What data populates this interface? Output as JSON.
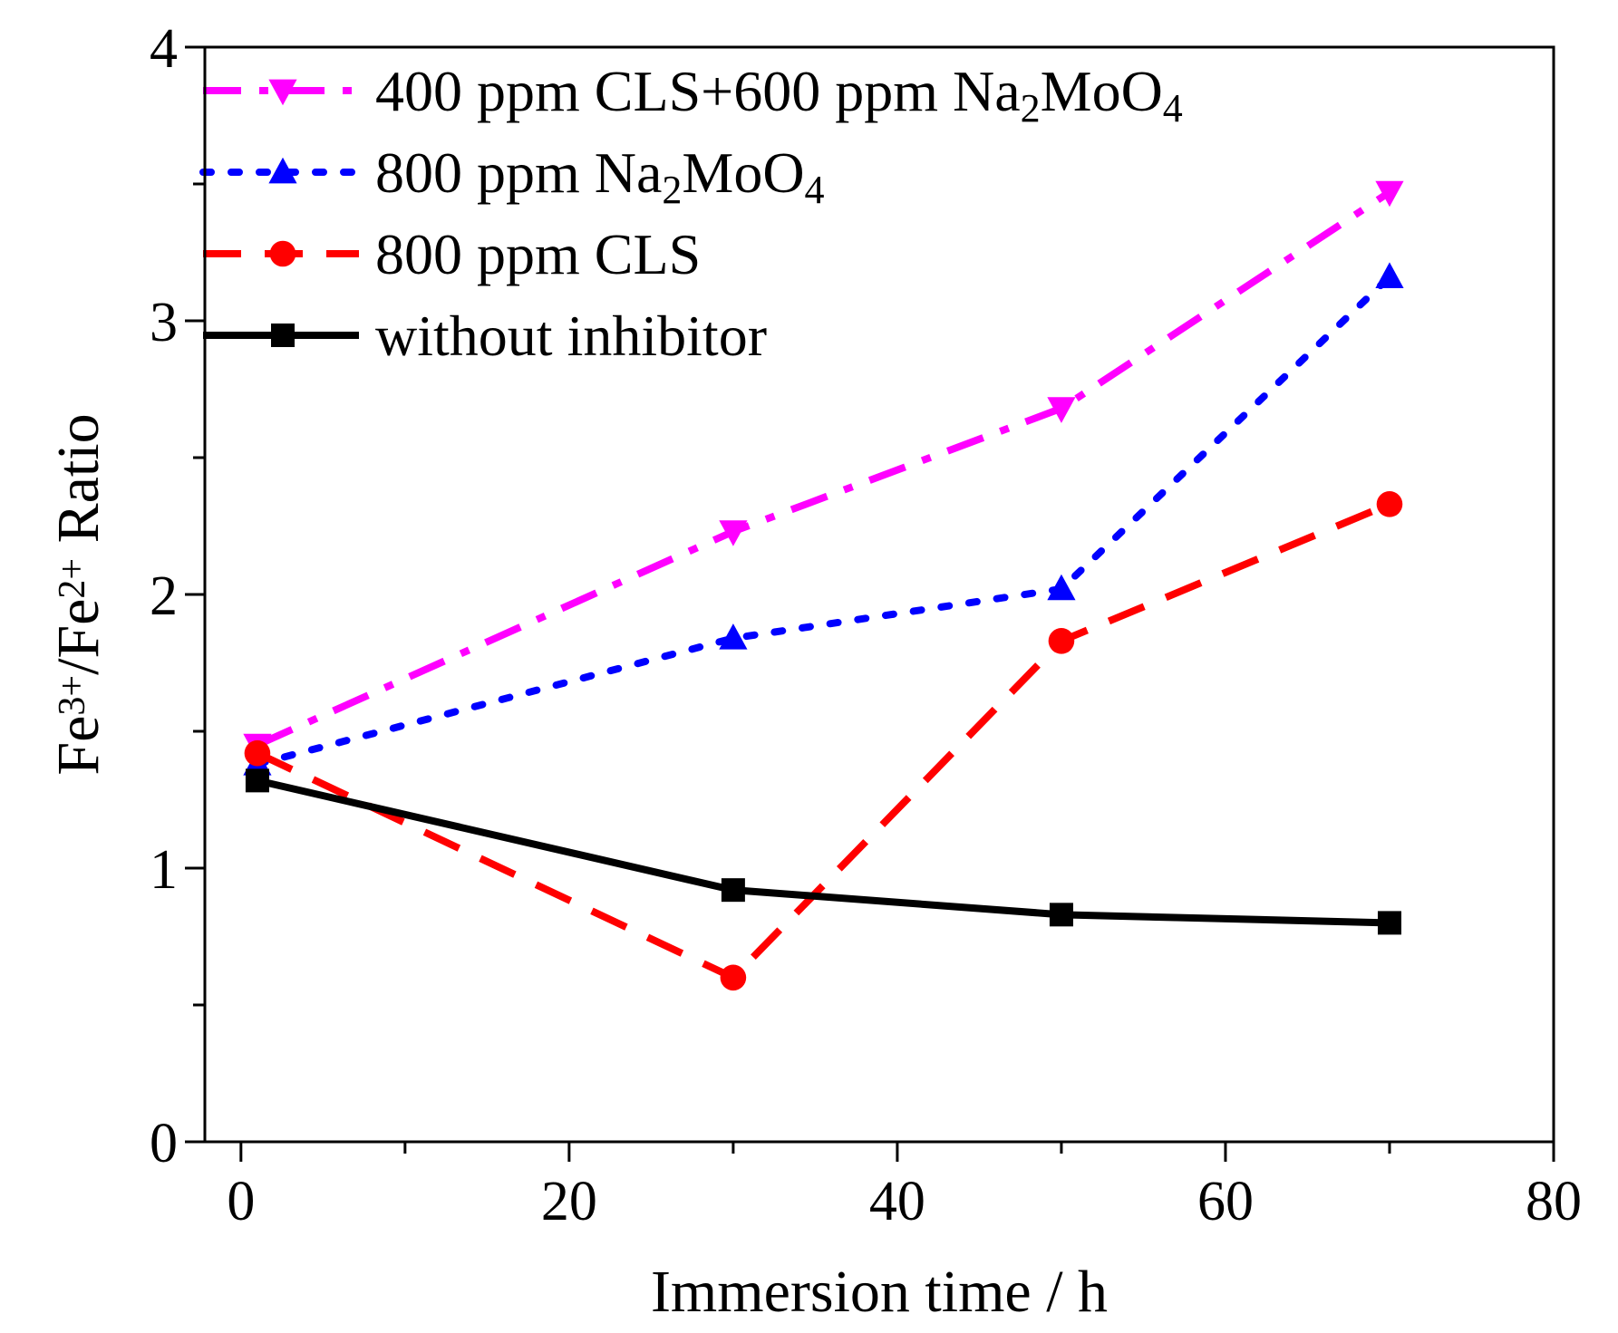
{
  "chart_data": {
    "type": "line",
    "xlabel": "Immersion time / h",
    "ylabel": {
      "parts": [
        {
          "text": "Fe",
          "sup": false
        },
        {
          "text": "3+",
          "sup": true
        },
        {
          "text": "/Fe",
          "sup": false
        },
        {
          "text": "2+",
          "sup": true
        },
        {
          "text": " Ratio",
          "sup": false
        }
      ]
    },
    "xlim": [
      -2.2,
      80
    ],
    "ylim": [
      0,
      4
    ],
    "xticks": [
      0,
      20,
      40,
      60,
      80
    ],
    "xtick_labels": [
      "0",
      "20",
      "40",
      "60",
      "80"
    ],
    "yticks": [
      0,
      1,
      2,
      3,
      4
    ],
    "ytick_labels": [
      "0",
      "1",
      "2",
      "3",
      "4"
    ],
    "x_minor_step": 10,
    "y_minor_step": 0.5,
    "grid": false,
    "legend_position": "top-left",
    "series": [
      {
        "name": "400 ppm CLS+600 ppm Na2MoO4",
        "legend": [
          {
            "text": "400 ppm CLS+600 ppm Na",
            "sub": false
          },
          {
            "text": "2",
            "sub": true
          },
          {
            "text": "MoO",
            "sub": false
          },
          {
            "text": "4",
            "sub": true
          }
        ],
        "color": "#ff00ff",
        "marker": "triangle-down",
        "dash": "dash-dot",
        "x": [
          1,
          30,
          50,
          70
        ],
        "y": [
          1.45,
          2.23,
          2.68,
          3.47
        ]
      },
      {
        "name": "800 ppm Na2MoO4",
        "legend": [
          {
            "text": "800 ppm Na",
            "sub": false
          },
          {
            "text": "2",
            "sub": true
          },
          {
            "text": "MoO",
            "sub": false
          },
          {
            "text": "4",
            "sub": true
          }
        ],
        "color": "#0000ff",
        "marker": "triangle-up",
        "dash": "dot",
        "x": [
          1,
          30,
          50,
          70
        ],
        "y": [
          1.38,
          1.84,
          2.02,
          3.16
        ]
      },
      {
        "name": "800 ppm CLS",
        "legend": [
          {
            "text": "800 ppm CLS",
            "sub": false
          }
        ],
        "color": "#ff0000",
        "marker": "circle",
        "dash": "dash",
        "x": [
          1,
          30,
          50,
          70
        ],
        "y": [
          1.42,
          0.6,
          1.83,
          2.33
        ]
      },
      {
        "name": "without inhibitor",
        "legend": [
          {
            "text": "without inhibitor",
            "sub": false
          }
        ],
        "color": "#000000",
        "marker": "square",
        "dash": "solid",
        "x": [
          1,
          30,
          50,
          70
        ],
        "y": [
          1.32,
          0.92,
          0.83,
          0.8
        ]
      }
    ]
  }
}
